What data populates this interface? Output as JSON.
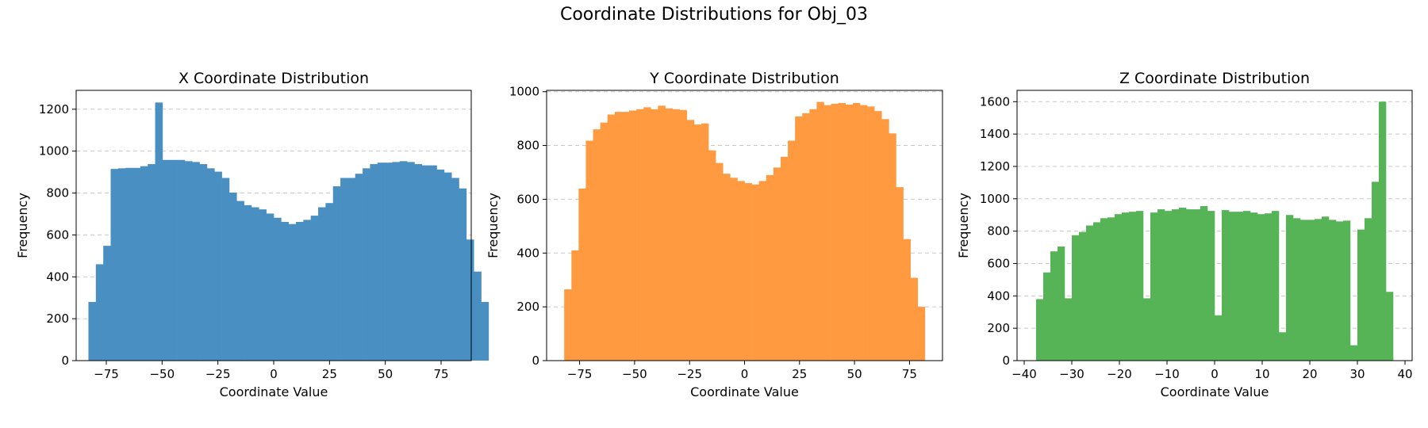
{
  "figure": {
    "suptitle": "Coordinate Distributions for Obj_03"
  },
  "chart_data": [
    {
      "type": "bar",
      "title": "X Coordinate Distribution",
      "xlabel": "Coordinate Value",
      "ylabel": "Frequency",
      "xlim": [
        -88.5,
        88.5
      ],
      "ylim": [
        0,
        1290
      ],
      "xticks": [
        -75,
        -50,
        -25,
        0,
        25,
        50,
        75
      ],
      "yticks": [
        0,
        200,
        400,
        600,
        800,
        1000,
        1200
      ],
      "color": "#4a8fc2",
      "grid": "y-dashed",
      "bins": {
        "start": -83,
        "width": 3.32,
        "values": [
          280,
          460,
          548,
          915,
          918,
          920,
          920,
          928,
          938,
          1232,
          958,
          958,
          958,
          952,
          948,
          938,
          918,
          902,
          872,
          802,
          762,
          742,
          732,
          722,
          702,
          682,
          662,
          652,
          662,
          672,
          692,
          732,
          752,
          832,
          872,
          872,
          892,
          918,
          938,
          945,
          945,
          948,
          952,
          948,
          938,
          932,
          932,
          912,
          898,
          872,
          822,
          578,
          425,
          280
        ]
      }
    },
    {
      "type": "bar",
      "title": "Y Coordinate Distribution",
      "xlabel": "Coordinate Value",
      "ylabel": "Frequency",
      "xlim": [
        -90,
        90
      ],
      "ylim": [
        0,
        1005
      ],
      "xticks": [
        -75,
        -50,
        -25,
        0,
        25,
        50,
        75
      ],
      "yticks": [
        0,
        200,
        400,
        600,
        800,
        1000
      ],
      "color": "#ff9a40",
      "grid": "y-dashed",
      "bins": {
        "start": -82,
        "width": 3.28,
        "values": [
          265,
          410,
          640,
          818,
          860,
          885,
          915,
          925,
          925,
          930,
          935,
          942,
          935,
          948,
          938,
          935,
          932,
          895,
          878,
          882,
          782,
          735,
          695,
          680,
          668,
          660,
          655,
          668,
          690,
          718,
          758,
          818,
          908,
          920,
          935,
          962,
          950,
          955,
          958,
          952,
          958,
          950,
          945,
          928,
          898,
          845,
          645,
          452,
          308,
          200
        ]
      }
    },
    {
      "type": "bar",
      "title": "Z Coordinate Distribution",
      "xlabel": "Coordinate Value",
      "ylabel": "Frequency",
      "xlim": [
        -41.5,
        41.5
      ],
      "ylim": [
        0,
        1670
      ],
      "xticks": [
        -40,
        -30,
        -20,
        -10,
        0,
        10,
        20,
        30,
        40
      ],
      "yticks": [
        0,
        200,
        400,
        600,
        800,
        1000,
        1200,
        1400,
        1600
      ],
      "color": "#56b356",
      "grid": "y-dashed",
      "bins": {
        "start": -37.5,
        "width": 1.5,
        "values": [
          380,
          545,
          675,
          705,
          385,
          775,
          795,
          835,
          855,
          880,
          885,
          905,
          915,
          920,
          925,
          385,
          915,
          935,
          925,
          935,
          945,
          935,
          935,
          955,
          925,
          280,
          930,
          920,
          920,
          925,
          915,
          905,
          910,
          925,
          175,
          900,
          880,
          870,
          870,
          875,
          890,
          870,
          860,
          865,
          95,
          810,
          880,
          1105,
          1600,
          425
        ]
      }
    }
  ]
}
